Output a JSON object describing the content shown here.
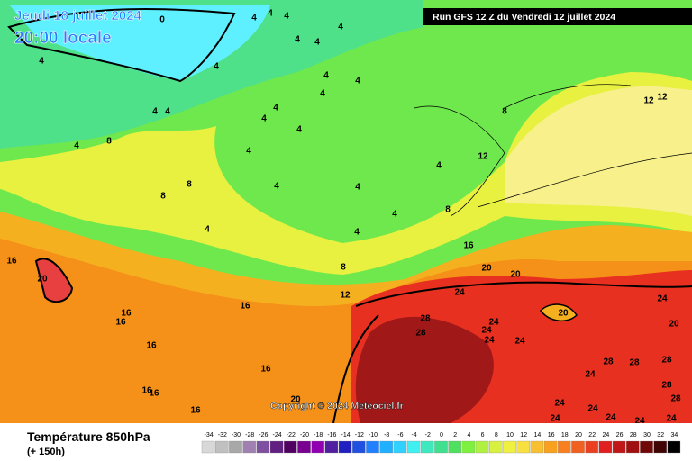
{
  "map": {
    "date_label": "Jeudi 18 juillet 2024",
    "time_label": "20:00 locale",
    "run_label": "Run GFS 12 Z du Vendredi 12 juillet 2024",
    "copyright": "Copyright © 2024 Meteociel.fr",
    "contour_labels": [
      0,
      4,
      4,
      4,
      4,
      4,
      4,
      4,
      4,
      4,
      4,
      4,
      4,
      4,
      4,
      4,
      4,
      4,
      8,
      4,
      4,
      8,
      8,
      4,
      4,
      4,
      4,
      4,
      8,
      8,
      12,
      12,
      12,
      16,
      16,
      20,
      20,
      20,
      12,
      8,
      16,
      16,
      16,
      16,
      16,
      16,
      16,
      16,
      20,
      24,
      28,
      28,
      24,
      24,
      24,
      24,
      20,
      24,
      20,
      28,
      28,
      28,
      24,
      24,
      24,
      24,
      24,
      24,
      28,
      28,
      24
    ]
  },
  "legend": {
    "title": "Température 850hPa",
    "subtitle": "(+ 150h)",
    "scale": [
      -34,
      -32,
      -30,
      -28,
      -26,
      -24,
      -22,
      -20,
      -18,
      -16,
      -14,
      -12,
      -10,
      -8,
      -6,
      -4,
      -2,
      0,
      2,
      4,
      6,
      8,
      10,
      12,
      14,
      16,
      18,
      20,
      22,
      24,
      26,
      28,
      30,
      32,
      34
    ]
  }
}
